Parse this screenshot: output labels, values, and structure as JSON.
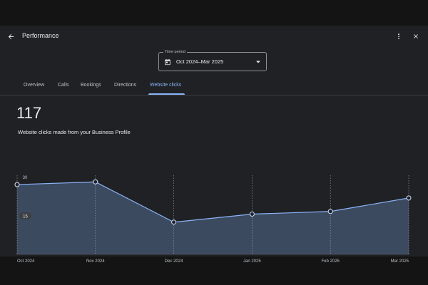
{
  "header": {
    "title": "Performance",
    "back_icon": "arrow-back-icon",
    "more_icon": "more-vert-icon",
    "close_icon": "close-icon"
  },
  "time_period": {
    "label": "Time period",
    "value": "Oct 2024–Mar 2025",
    "icon": "calendar-icon"
  },
  "tabs": [
    {
      "label": "Overview",
      "active": false
    },
    {
      "label": "Calls",
      "active": false
    },
    {
      "label": "Bookings",
      "active": false
    },
    {
      "label": "Directions",
      "active": false
    },
    {
      "label": "Website clicks",
      "active": true
    }
  ],
  "summary": {
    "value": "117",
    "description": "Website clicks made from your Business Profile"
  },
  "colors": {
    "accent": "#8ab4f8",
    "area_fill": "#3c4a5f",
    "line": "#8ab4f8",
    "background": "#202124"
  },
  "chart_data": {
    "type": "area",
    "categories": [
      "Oct 2024",
      "Nov 2024",
      "Dec 2024",
      "Jan 2025",
      "Feb 2025",
      "Mar 2025"
    ],
    "values": [
      26,
      27,
      12,
      15,
      16,
      21
    ],
    "yticks": [
      "30",
      "15"
    ],
    "ylim": [
      0,
      30
    ],
    "grid": true
  }
}
